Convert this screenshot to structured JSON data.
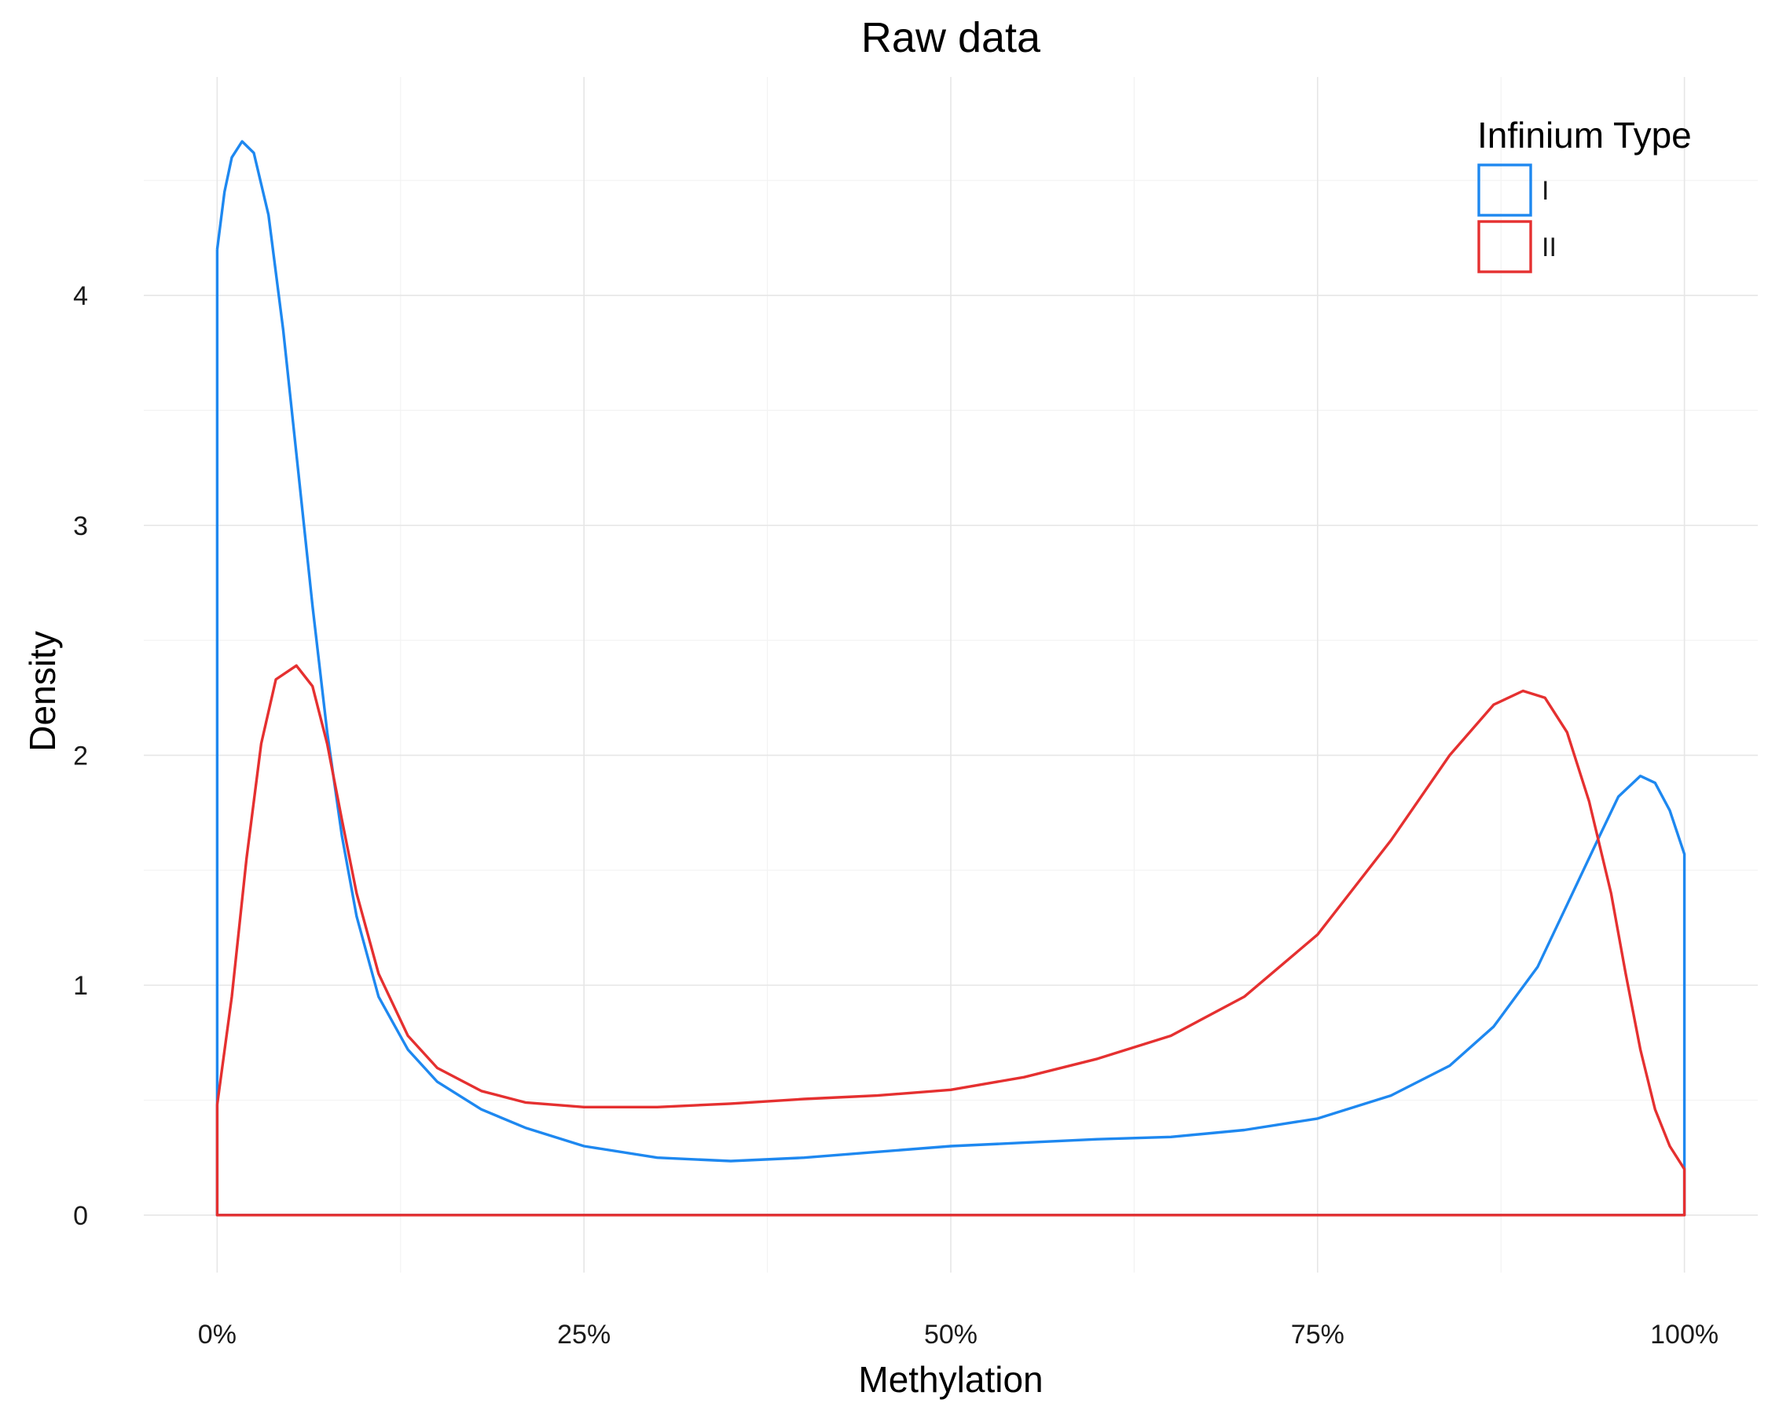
{
  "chart_data": {
    "type": "line",
    "title": "Raw data",
    "xlabel": "Methylation",
    "ylabel": "Density",
    "xlim": [
      -0.05,
      1.05
    ],
    "ylim": [
      -0.25,
      4.95
    ],
    "x_ticks": [
      0,
      0.25,
      0.5,
      0.75,
      1.0
    ],
    "x_tick_labels": [
      "0%",
      "25%",
      "50%",
      "75%",
      "100%"
    ],
    "y_ticks": [
      0,
      1,
      2,
      3,
      4
    ],
    "y_tick_labels": [
      "0",
      "1",
      "2",
      "3",
      "4"
    ],
    "grid": true,
    "legend": {
      "title": "Infinium Type",
      "position": "top-right"
    },
    "series": [
      {
        "name": "I",
        "color": "#1e88f0",
        "points": [
          [
            0.0,
            4.2
          ],
          [
            0.005,
            4.45
          ],
          [
            0.01,
            4.6
          ],
          [
            0.017,
            4.67
          ],
          [
            0.025,
            4.62
          ],
          [
            0.035,
            4.35
          ],
          [
            0.045,
            3.85
          ],
          [
            0.055,
            3.25
          ],
          [
            0.065,
            2.65
          ],
          [
            0.075,
            2.1
          ],
          [
            0.085,
            1.65
          ],
          [
            0.095,
            1.3
          ],
          [
            0.11,
            0.95
          ],
          [
            0.13,
            0.72
          ],
          [
            0.15,
            0.58
          ],
          [
            0.18,
            0.46
          ],
          [
            0.21,
            0.38
          ],
          [
            0.25,
            0.3
          ],
          [
            0.3,
            0.25
          ],
          [
            0.35,
            0.235
          ],
          [
            0.4,
            0.25
          ],
          [
            0.45,
            0.275
          ],
          [
            0.5,
            0.3
          ],
          [
            0.55,
            0.315
          ],
          [
            0.6,
            0.33
          ],
          [
            0.65,
            0.34
          ],
          [
            0.7,
            0.37
          ],
          [
            0.75,
            0.42
          ],
          [
            0.8,
            0.52
          ],
          [
            0.84,
            0.65
          ],
          [
            0.87,
            0.82
          ],
          [
            0.9,
            1.08
          ],
          [
            0.92,
            1.35
          ],
          [
            0.94,
            1.62
          ],
          [
            0.955,
            1.82
          ],
          [
            0.97,
            1.91
          ],
          [
            0.98,
            1.88
          ],
          [
            0.99,
            1.76
          ],
          [
            1.0,
            1.57
          ],
          [
            1.0,
            0.0
          ],
          [
            0.0,
            0.0
          ],
          [
            0.0,
            4.2
          ]
        ]
      },
      {
        "name": "II",
        "color": "#e53030",
        "points": [
          [
            0.0,
            0.48
          ],
          [
            0.01,
            0.95
          ],
          [
            0.02,
            1.55
          ],
          [
            0.03,
            2.05
          ],
          [
            0.04,
            2.33
          ],
          [
            0.054,
            2.39
          ],
          [
            0.065,
            2.3
          ],
          [
            0.075,
            2.05
          ],
          [
            0.085,
            1.72
          ],
          [
            0.095,
            1.4
          ],
          [
            0.11,
            1.05
          ],
          [
            0.13,
            0.78
          ],
          [
            0.15,
            0.64
          ],
          [
            0.18,
            0.54
          ],
          [
            0.21,
            0.49
          ],
          [
            0.25,
            0.47
          ],
          [
            0.3,
            0.47
          ],
          [
            0.35,
            0.485
          ],
          [
            0.4,
            0.505
          ],
          [
            0.45,
            0.52
          ],
          [
            0.5,
            0.545
          ],
          [
            0.55,
            0.6
          ],
          [
            0.6,
            0.68
          ],
          [
            0.65,
            0.78
          ],
          [
            0.7,
            0.95
          ],
          [
            0.75,
            1.22
          ],
          [
            0.8,
            1.63
          ],
          [
            0.84,
            2.0
          ],
          [
            0.87,
            2.22
          ],
          [
            0.89,
            2.28
          ],
          [
            0.905,
            2.25
          ],
          [
            0.92,
            2.1
          ],
          [
            0.935,
            1.8
          ],
          [
            0.95,
            1.4
          ],
          [
            0.96,
            1.05
          ],
          [
            0.97,
            0.72
          ],
          [
            0.98,
            0.46
          ],
          [
            0.99,
            0.3
          ],
          [
            1.0,
            0.2
          ],
          [
            1.0,
            0.0
          ],
          [
            0.0,
            0.0
          ],
          [
            0.0,
            0.48
          ]
        ]
      }
    ]
  }
}
